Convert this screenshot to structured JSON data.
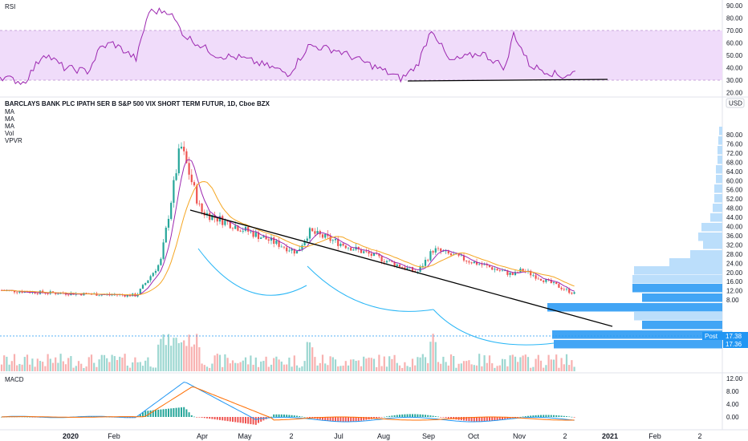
{
  "colors": {
    "up": "#26a69a",
    "down": "#ef5350",
    "rsi_line": "#9c27b0",
    "rsi_band": "#f0dcfa",
    "ma1": "#9c27b0",
    "ma2": "#f5a623",
    "macd_line": "#2196f3",
    "signal_line": "#ff6d00",
    "trend": "#000000",
    "cup": "#29b6f6",
    "vp_strong": "#42a5f5",
    "vp_weak": "#bbdefb",
    "price_tag": "#2196f3"
  },
  "main": {
    "title": "BARCLAYS BANK PLC IPATH SER B S&P 500 VIX SHORT TERM FUTUR, 1D, Cboe BZX",
    "indicators": [
      "MA",
      "MA",
      "MA",
      "Vol",
      "VPVR"
    ],
    "currency": "USD",
    "post_label": "Post",
    "last_post_price": "17.38",
    "last_price": "17.36",
    "price_ticks": [
      "80.00",
      "76.00",
      "72.00",
      "68.00",
      "64.00",
      "60.00",
      "56.00",
      "52.00",
      "48.00",
      "44.00",
      "40.00",
      "36.00",
      "32.00",
      "28.00",
      "24.00",
      "20.00",
      "16.00",
      "12.00",
      "8.00"
    ]
  },
  "rsi": {
    "label": "RSI",
    "ticks": [
      "90.00",
      "80.00",
      "70.00",
      "60.00",
      "50.00",
      "40.00",
      "30.00",
      "20.00"
    ]
  },
  "macd": {
    "label": "MACD",
    "ticks": [
      "12.00",
      "8.00",
      "4.00",
      "0.00"
    ]
  },
  "time_axis": [
    "2020",
    "Feb",
    "Apr",
    "May",
    "2",
    "Jul",
    "Aug",
    "Sep",
    "Oct",
    "Nov",
    "2",
    "2021",
    "Feb",
    "2"
  ],
  "chart_data": [
    {
      "type": "line",
      "name": "RSI",
      "x": [
        "2019-12",
        "2020-01",
        "2020-02",
        "2020-03",
        "2020-04",
        "2020-05",
        "2020-06",
        "2020-07",
        "2020-08",
        "2020-09",
        "2020-10",
        "2020-11",
        "2020-12"
      ],
      "values": [
        35,
        45,
        35,
        88,
        60,
        45,
        55,
        42,
        35,
        70,
        45,
        65,
        35
      ],
      "ylim": [
        15,
        95
      ],
      "bands": [
        30,
        70
      ]
    },
    {
      "type": "line",
      "name": "price",
      "x": [
        "2019-12",
        "2020-01",
        "2020-02",
        "2020-03",
        "2020-03",
        "2020-04",
        "2020-05",
        "2020-06",
        "2020-07",
        "2020-08",
        "2020-09",
        "2020-10",
        "2020-11",
        "2020-12"
      ],
      "values": [
        19,
        18,
        17,
        30,
        78,
        50,
        42,
        34,
        38,
        26,
        34,
        25,
        27,
        17.36
      ],
      "ylim": [
        6,
        82
      ]
    },
    {
      "type": "bar",
      "name": "MACD",
      "ylim": [
        -2,
        14
      ],
      "values": [
        0,
        0,
        0,
        4,
        11,
        3,
        -1,
        -1,
        0,
        1,
        0,
        1,
        0
      ]
    }
  ]
}
